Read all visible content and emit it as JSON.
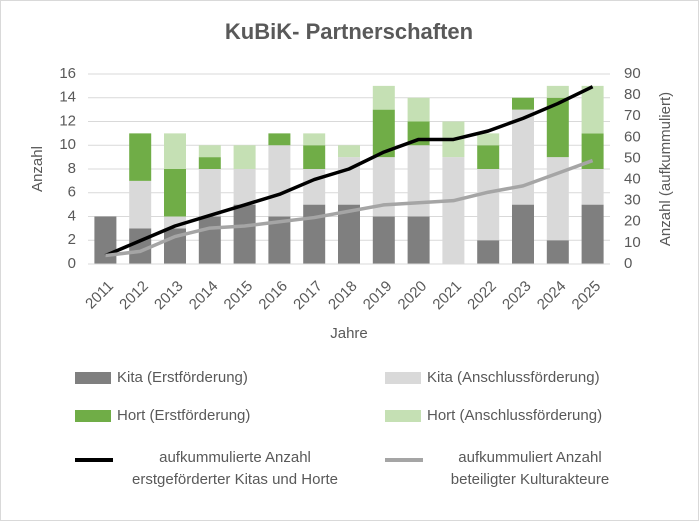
{
  "chart_data": {
    "type": "bar",
    "stacked": true,
    "title": "KuBiK- Partnerschaften",
    "x_label": "Jahre",
    "y_label": "Anzahl",
    "y2_label": "Anzahl (aufkummuliert)",
    "categories": [
      "2011",
      "2012",
      "2013",
      "2014",
      "2015",
      "2016",
      "2017",
      "2018",
      "2019",
      "2020",
      "2021",
      "2022",
      "2023",
      "2024",
      "2025"
    ],
    "ylim": [
      0,
      16
    ],
    "yticks": [
      0,
      2,
      4,
      6,
      8,
      10,
      12,
      14,
      16
    ],
    "y2lim": [
      0,
      90
    ],
    "y2ticks": [
      0,
      10,
      20,
      30,
      40,
      50,
      60,
      70,
      80,
      90
    ],
    "grid": true,
    "series": [
      {
        "name": "Kita (Erstförderung)",
        "color": "#7f7f7f",
        "values": [
          4,
          3,
          3,
          4,
          5,
          4,
          5,
          5,
          4,
          4,
          0,
          2,
          5,
          2,
          5
        ]
      },
      {
        "name": "Kita (Anschlussförderung)",
        "color": "#d9d9d9",
        "values": [
          0,
          4,
          1,
          4,
          3,
          6,
          3,
          4,
          5,
          6,
          9,
          6,
          8,
          7,
          3
        ]
      },
      {
        "name": "Hort (Erstförderung)",
        "color": "#70ad47",
        "values": [
          0,
          4,
          4,
          1,
          0,
          1,
          2,
          0,
          4,
          2,
          0,
          2,
          1,
          5,
          3
        ]
      },
      {
        "name": "Hort (Anschlussförderung)",
        "color": "#c5e0b4",
        "values": [
          0,
          0,
          3,
          1,
          2,
          0,
          1,
          1,
          2,
          2,
          3,
          1,
          0,
          1,
          4
        ]
      },
      {
        "name": "aufkummulierte Anzahl\nerstgeförderter Kitas und Horte",
        "color": "#000000",
        "type": "line",
        "axis": "y2",
        "values": [
          4,
          11,
          18,
          23,
          28,
          33,
          40,
          45,
          53,
          59,
          59,
          63,
          69,
          76,
          84
        ]
      },
      {
        "name": "aufkummuliert Anzahl\nbeteiligter Kulturakteure",
        "color": "#a5a5a5",
        "type": "line",
        "axis": "y2",
        "values": [
          4,
          6,
          13,
          17,
          18,
          20,
          22,
          25,
          28,
          29,
          30,
          34,
          37,
          43,
          49
        ]
      }
    ]
  }
}
